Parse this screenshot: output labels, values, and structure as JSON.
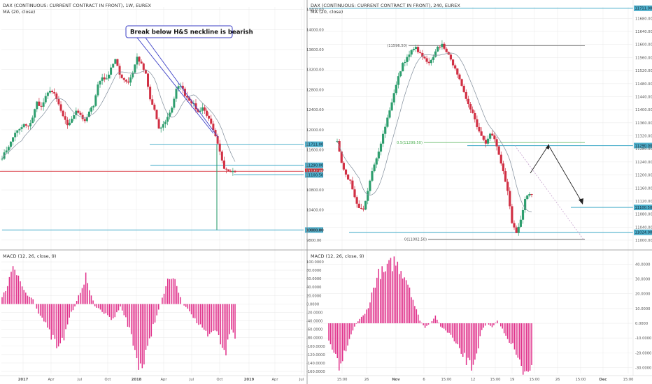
{
  "chart_data": [
    {
      "type": "candlestick",
      "panel": "left-price",
      "title": "DAX (CONTINUOUS: CURRENT CONTRACT IN FRONT), 1W, EUREX",
      "indicator": "MA (20, close)",
      "x_ticks": [
        "2017",
        "Apr",
        "Jul",
        "Oct",
        "2018",
        "Apr",
        "Jul",
        "Oct",
        "2019",
        "Apr",
        "Jul"
      ],
      "y_ticks": [
        9800,
        10000,
        10400,
        10800,
        11200,
        11600,
        12000,
        12400,
        12800,
        13200,
        13600,
        14000,
        14400
      ],
      "ylim": [
        9700,
        14450
      ],
      "close_path": [
        11450,
        11600,
        11750,
        11950,
        12000,
        12100,
        12050,
        12250,
        12550,
        12450,
        12650,
        12800,
        12700,
        12500,
        12250,
        12100,
        12200,
        12400,
        12300,
        12150,
        12350,
        12500,
        12900,
        13050,
        13000,
        13250,
        13400,
        13100,
        13000,
        12950,
        13150,
        13450,
        13300,
        13100,
        12600,
        12400,
        12000,
        12100,
        12250,
        12450,
        12800,
        12900,
        12700,
        12600,
        12500,
        12350,
        12450,
        12300,
        12100,
        11850,
        11550,
        11250,
        11200,
        11172
      ],
      "ma_label": "MA (20, close)",
      "levels": [
        {
          "price": 11711.0,
          "label": "11711.00",
          "color": "#4fb0cc"
        },
        {
          "price": 11290.0,
          "label": "11290.00",
          "color": "#4fb0cc"
        },
        {
          "price": 11172.0,
          "label": "11172.00",
          "color": "#d9303a"
        },
        {
          "price": 11100.5,
          "label": "11100.50",
          "color": "#4fb0cc"
        },
        {
          "price": 10000.0,
          "label": "10000.00",
          "color": "#4fb0cc"
        }
      ],
      "annotation": "Break below H&S neckline is bearish"
    },
    {
      "type": "histogram",
      "panel": "left-macd",
      "title": "MACD (12, 26, close, 9)",
      "y_ticks": [
        100,
        80,
        60,
        40,
        20,
        0,
        -20,
        -40,
        -60,
        -80,
        -100,
        -120,
        -140,
        -160
      ],
      "ylim": [
        -165,
        105
      ],
      "shape": [
        [
          0,
          15
        ],
        [
          3,
          45
        ],
        [
          6,
          95
        ],
        [
          9,
          70
        ],
        [
          11,
          40
        ],
        [
          14,
          20
        ],
        [
          17,
          10
        ],
        [
          20,
          -20
        ],
        [
          23,
          -40
        ],
        [
          26,
          -70
        ],
        [
          29,
          -90
        ],
        [
          31,
          -110
        ],
        [
          34,
          -80
        ],
        [
          37,
          -30
        ],
        [
          40,
          -5
        ],
        [
          43,
          30
        ],
        [
          46,
          65
        ],
        [
          49,
          20
        ],
        [
          51,
          -5
        ],
        [
          54,
          -15
        ],
        [
          57,
          -25
        ],
        [
          60,
          -35
        ],
        [
          62,
          -30
        ],
        [
          65,
          -5
        ],
        [
          68,
          -35
        ],
        [
          71,
          -75
        ],
        [
          74,
          -130
        ],
        [
          77,
          -150
        ],
        [
          80,
          -110
        ],
        [
          83,
          -50
        ],
        [
          86,
          -15
        ],
        [
          88,
          15
        ],
        [
          91,
          55
        ],
        [
          94,
          70
        ],
        [
          97,
          30
        ],
        [
          99,
          0
        ],
        [
          102,
          -10
        ],
        [
          105,
          -30
        ],
        [
          108,
          -50
        ],
        [
          111,
          -70
        ],
        [
          114,
          -80
        ],
        [
          117,
          -60
        ],
        [
          120,
          -90
        ],
        [
          123,
          -110
        ],
        [
          126,
          -60
        ],
        [
          128,
          -80
        ]
      ],
      "bar_count": 129
    },
    {
      "type": "candlestick",
      "panel": "right-price",
      "title": "DAX (CONTINUOUS: CURRENT CONTRACT IN FRONT), 240, EUREX",
      "indicator": "MA (20, close)",
      "x_ticks": [
        "15:00",
        "26",
        "Nov",
        "6",
        "15:00",
        "12",
        "15:00",
        "19",
        "15:00",
        "26",
        "15:00",
        "Dec",
        "15:00"
      ],
      "y_ticks": [
        11000,
        11040,
        11080,
        11120,
        11160,
        11200,
        11240,
        11280,
        11320,
        11360,
        11400,
        11440,
        11480,
        11520,
        11560,
        11600,
        11640,
        11680
      ],
      "ylim": [
        10985,
        11715
      ],
      "close_path": [
        11300,
        11240,
        11200,
        11180,
        11130,
        11100,
        11090,
        11150,
        11210,
        11250,
        11300,
        11350,
        11400,
        11450,
        11500,
        11540,
        11560,
        11580,
        11590,
        11570,
        11555,
        11540,
        11560,
        11590,
        11600,
        11580,
        11550,
        11530,
        11490,
        11450,
        11420,
        11390,
        11350,
        11320,
        11300,
        11330,
        11310,
        11260,
        11210,
        11150,
        11050,
        11020,
        11060,
        11130,
        11140
      ],
      "ma_label": "MA (20, close)",
      "levels": [
        {
          "price": 11711.0,
          "label": "11711.00",
          "color": "#4fb0cc"
        },
        {
          "price": 11596.5,
          "label": "(11596.50)",
          "color": "#555555"
        },
        {
          "price": 11299.5,
          "label": "0.5(11299.50)",
          "color": "#4caf50"
        },
        {
          "price": 11290.0,
          "label": "11290.00",
          "color": "#4fb0cc"
        },
        {
          "price": 11100.5,
          "label": "11100.50",
          "color": "#4fb0cc"
        },
        {
          "price": 11024.0,
          "label": "11024.00",
          "color": "#4fb0cc"
        },
        {
          "price": 11002.5,
          "label": "0(11002.50)",
          "color": "#555555"
        }
      ]
    },
    {
      "type": "histogram",
      "panel": "right-macd",
      "title": "MACD (12, 26, close, 9)",
      "y_ticks": [
        40,
        30,
        20,
        10,
        0,
        -10,
        -20,
        -30
      ],
      "ylim": [
        -34,
        43
      ],
      "shape": [
        [
          0,
          -12
        ],
        [
          3,
          -18
        ],
        [
          6,
          -28
        ],
        [
          9,
          -20
        ],
        [
          12,
          -10
        ],
        [
          15,
          -2
        ],
        [
          18,
          3
        ],
        [
          21,
          6
        ],
        [
          24,
          15
        ],
        [
          27,
          28
        ],
        [
          30,
          35
        ],
        [
          32,
          33
        ],
        [
          35,
          38
        ],
        [
          38,
          42
        ],
        [
          41,
          38
        ],
        [
          44,
          33
        ],
        [
          47,
          25
        ],
        [
          50,
          12
        ],
        [
          53,
          2
        ],
        [
          56,
          -3
        ],
        [
          59,
          0
        ],
        [
          62,
          5
        ],
        [
          65,
          -2
        ],
        [
          68,
          -5
        ],
        [
          71,
          -8
        ],
        [
          74,
          -15
        ],
        [
          77,
          -20
        ],
        [
          80,
          -25
        ],
        [
          83,
          -30
        ],
        [
          86,
          -20
        ],
        [
          89,
          -5
        ],
        [
          92,
          0
        ],
        [
          95,
          -3
        ],
        [
          98,
          2
        ],
        [
          101,
          -4
        ],
        [
          104,
          -10
        ],
        [
          107,
          -15
        ],
        [
          110,
          -25
        ],
        [
          113,
          -32
        ],
        [
          116,
          -30
        ],
        [
          118,
          -28
        ]
      ],
      "bar_count": 119
    }
  ],
  "colors": {
    "bull": "#2e9e6e",
    "bear": "#d13044",
    "macd": "#e0308a",
    "level": "#4fb0cc",
    "fib": "#4caf50",
    "grid": "#ececec",
    "divider": "#8a8a8a"
  }
}
